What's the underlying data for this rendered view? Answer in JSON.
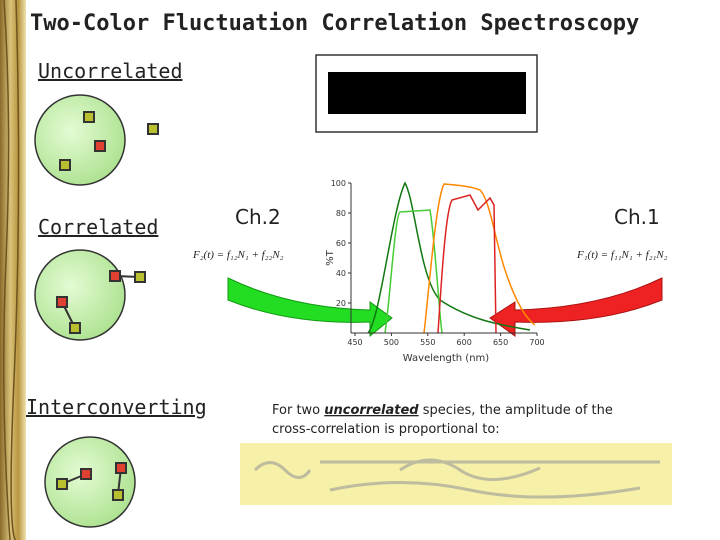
{
  "title": "Two-Color Fluctuation Correlation Spectroscopy",
  "labels": {
    "uncorrelated": "Uncorrelated",
    "correlated": "Correlated",
    "interconverting": "Interconverting"
  },
  "channels": {
    "ch2": "Ch.2",
    "ch1": "Ch.1"
  },
  "formulas": {
    "f2": "F₂(t) = f₁₂N₁ + f₂₂N₂",
    "f1": "F₁(t) = f₁₁N₁ + f₂₁N₂"
  },
  "spectrum": {
    "x_label": "Wavelength (nm)",
    "y_label": "%T",
    "xlim": [
      450,
      700
    ],
    "ylim": [
      0,
      100
    ],
    "xticks": [
      450,
      500,
      550,
      600,
      650,
      700
    ],
    "yticks": [
      20,
      40,
      60,
      80,
      100
    ]
  },
  "note": {
    "before": "For two ",
    "emphasis": "uncorrelated",
    "after": " species, the amplitude of the",
    "line2": "cross-correlation is proportional to:"
  }
}
